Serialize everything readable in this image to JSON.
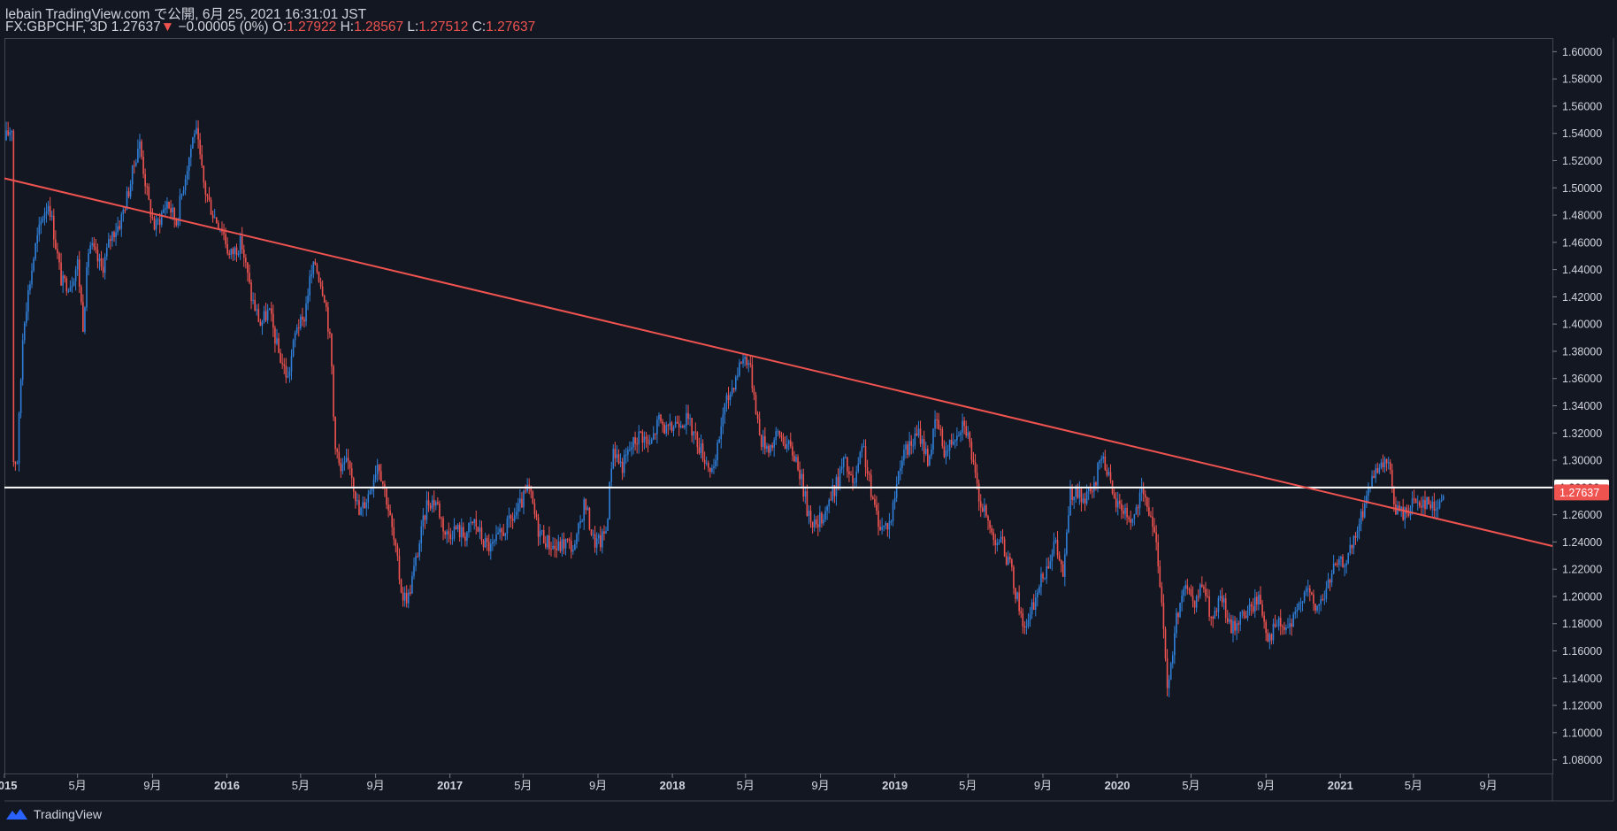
{
  "header": {
    "publisher_line": "lebain TradingView.com で公開, 6月 25, 2021 16:31:01 JST",
    "symbol": "FX:GBPCHF, 3D",
    "last": "1.27637",
    "change_arrow": "▼",
    "change": "−0.00005 (0%)",
    "o_label": "O:",
    "o_value": "1.27922",
    "h_label": "H:",
    "h_value": "1.28567",
    "l_label": "L:",
    "l_value": "1.27512",
    "c_label": "C:",
    "c_value": "1.27637"
  },
  "footer": {
    "brand": "TradingView"
  },
  "colors": {
    "background": "#131722",
    "up": "#2f7fd8",
    "down": "#ef5350",
    "trendline": "#ef5350",
    "hline": "#ffffff",
    "text": "#d1d4dc",
    "grid": "#2a2e39"
  },
  "chart_data": {
    "type": "candlestick",
    "symbol": "FX:GBPCHF",
    "timeframe": "3D",
    "ylim": [
      1.07,
      1.61
    ],
    "y_ticks": [
      "1.08000",
      "1.10000",
      "1.12000",
      "1.14000",
      "1.16000",
      "1.18000",
      "1.20000",
      "1.22000",
      "1.24000",
      "1.26000",
      "1.28000",
      "1.30000",
      "1.32000",
      "1.34000",
      "1.36000",
      "1.38000",
      "1.40000",
      "1.42000",
      "1.44000",
      "1.46000",
      "1.48000",
      "1.50000",
      "1.52000",
      "1.54000",
      "1.56000",
      "1.58000",
      "1.60000"
    ],
    "x_ticks": [
      {
        "date": "2015-01-01",
        "label": "2015",
        "major": true
      },
      {
        "date": "2015-05-01",
        "label": "5月"
      },
      {
        "date": "2015-09-01",
        "label": "9月"
      },
      {
        "date": "2016-01-01",
        "label": "2016",
        "major": true
      },
      {
        "date": "2016-05-01",
        "label": "5月"
      },
      {
        "date": "2016-09-01",
        "label": "9月"
      },
      {
        "date": "2017-01-01",
        "label": "2017",
        "major": true
      },
      {
        "date": "2017-05-01",
        "label": "5月"
      },
      {
        "date": "2017-09-01",
        "label": "9月"
      },
      {
        "date": "2018-01-01",
        "label": "2018",
        "major": true
      },
      {
        "date": "2018-05-01",
        "label": "5月"
      },
      {
        "date": "2018-09-01",
        "label": "9月"
      },
      {
        "date": "2019-01-01",
        "label": "2019",
        "major": true
      },
      {
        "date": "2019-05-01",
        "label": "5月"
      },
      {
        "date": "2019-09-01",
        "label": "9月"
      },
      {
        "date": "2020-01-01",
        "label": "2020",
        "major": true
      },
      {
        "date": "2020-05-01",
        "label": "5月"
      },
      {
        "date": "2020-09-01",
        "label": "9月"
      },
      {
        "date": "2021-01-01",
        "label": "2021",
        "major": true
      },
      {
        "date": "2021-05-01",
        "label": "5月"
      },
      {
        "date": "2021-09-01",
        "label": "9月"
      }
    ],
    "x_range": [
      "2015-01-01",
      "2021-12-15"
    ],
    "price_path": [
      [
        "2015-01-01",
        1.535
      ],
      [
        "2015-01-13",
        1.545
      ],
      [
        "2015-01-15",
        1.3
      ],
      [
        "2015-01-22",
        1.3
      ],
      [
        "2015-02-01",
        1.4
      ],
      [
        "2015-02-20",
        1.455
      ],
      [
        "2015-03-05",
        1.48
      ],
      [
        "2015-03-15",
        1.49
      ],
      [
        "2015-04-05",
        1.43
      ],
      [
        "2015-04-20",
        1.43
      ],
      [
        "2015-05-01",
        1.445
      ],
      [
        "2015-05-10",
        1.4
      ],
      [
        "2015-05-20",
        1.46
      ],
      [
        "2015-06-10",
        1.44
      ],
      [
        "2015-06-25",
        1.465
      ],
      [
        "2015-07-10",
        1.475
      ],
      [
        "2015-07-25",
        1.5
      ],
      [
        "2015-08-10",
        1.535
      ],
      [
        "2015-08-25",
        1.49
      ],
      [
        "2015-09-05",
        1.47
      ],
      [
        "2015-09-25",
        1.49
      ],
      [
        "2015-10-10",
        1.475
      ],
      [
        "2015-10-25",
        1.51
      ],
      [
        "2015-11-10",
        1.545
      ],
      [
        "2015-11-25",
        1.5
      ],
      [
        "2015-12-10",
        1.48
      ],
      [
        "2015-12-25",
        1.47
      ],
      [
        "2016-01-05",
        1.45
      ],
      [
        "2016-01-25",
        1.46
      ],
      [
        "2016-02-10",
        1.42
      ],
      [
        "2016-02-25",
        1.4
      ],
      [
        "2016-03-10",
        1.41
      ],
      [
        "2016-03-25",
        1.38
      ],
      [
        "2016-04-10",
        1.36
      ],
      [
        "2016-04-25",
        1.4
      ],
      [
        "2016-05-05",
        1.4
      ],
      [
        "2016-05-15",
        1.43
      ],
      [
        "2016-05-25",
        1.445
      ],
      [
        "2016-06-10",
        1.42
      ],
      [
        "2016-06-20",
        1.38
      ],
      [
        "2016-06-25",
        1.32
      ],
      [
        "2016-07-05",
        1.29
      ],
      [
        "2016-07-20",
        1.3
      ],
      [
        "2016-08-05",
        1.26
      ],
      [
        "2016-08-20",
        1.275
      ],
      [
        "2016-09-05",
        1.3
      ],
      [
        "2016-09-20",
        1.27
      ],
      [
        "2016-10-05",
        1.23
      ],
      [
        "2016-10-15",
        1.2
      ],
      [
        "2016-10-25",
        1.2
      ],
      [
        "2016-11-10",
        1.235
      ],
      [
        "2016-11-25",
        1.27
      ],
      [
        "2016-12-10",
        1.27
      ],
      [
        "2016-12-25",
        1.245
      ],
      [
        "2017-01-10",
        1.25
      ],
      [
        "2017-01-25",
        1.245
      ],
      [
        "2017-02-10",
        1.255
      ],
      [
        "2017-02-25",
        1.24
      ],
      [
        "2017-03-10",
        1.235
      ],
      [
        "2017-03-25",
        1.245
      ],
      [
        "2017-04-10",
        1.255
      ],
      [
        "2017-04-25",
        1.265
      ],
      [
        "2017-05-10",
        1.28
      ],
      [
        "2017-05-25",
        1.25
      ],
      [
        "2017-06-10",
        1.24
      ],
      [
        "2017-06-25",
        1.235
      ],
      [
        "2017-07-10",
        1.24
      ],
      [
        "2017-07-25",
        1.235
      ],
      [
        "2017-08-10",
        1.27
      ],
      [
        "2017-08-25",
        1.24
      ],
      [
        "2017-09-05",
        1.24
      ],
      [
        "2017-09-15",
        1.25
      ],
      [
        "2017-09-25",
        1.31
      ],
      [
        "2017-10-10",
        1.295
      ],
      [
        "2017-10-25",
        1.31
      ],
      [
        "2017-11-10",
        1.32
      ],
      [
        "2017-11-25",
        1.31
      ],
      [
        "2017-12-10",
        1.33
      ],
      [
        "2017-12-25",
        1.32
      ],
      [
        "2018-01-10",
        1.33
      ],
      [
        "2018-01-25",
        1.33
      ],
      [
        "2018-02-10",
        1.315
      ],
      [
        "2018-02-25",
        1.3
      ],
      [
        "2018-03-10",
        1.29
      ],
      [
        "2018-03-25",
        1.335
      ],
      [
        "2018-04-10",
        1.355
      ],
      [
        "2018-04-25",
        1.375
      ],
      [
        "2018-05-05",
        1.375
      ],
      [
        "2018-05-15",
        1.35
      ],
      [
        "2018-05-25",
        1.315
      ],
      [
        "2018-06-10",
        1.31
      ],
      [
        "2018-06-25",
        1.32
      ],
      [
        "2018-07-10",
        1.31
      ],
      [
        "2018-07-25",
        1.3
      ],
      [
        "2018-08-10",
        1.265
      ],
      [
        "2018-08-25",
        1.25
      ],
      [
        "2018-09-10",
        1.265
      ],
      [
        "2018-09-25",
        1.28
      ],
      [
        "2018-10-10",
        1.3
      ],
      [
        "2018-10-25",
        1.28
      ],
      [
        "2018-11-10",
        1.31
      ],
      [
        "2018-11-25",
        1.27
      ],
      [
        "2018-12-10",
        1.25
      ],
      [
        "2018-12-25",
        1.255
      ],
      [
        "2019-01-10",
        1.3
      ],
      [
        "2019-01-25",
        1.31
      ],
      [
        "2019-02-10",
        1.32
      ],
      [
        "2019-02-25",
        1.3
      ],
      [
        "2019-03-10",
        1.33
      ],
      [
        "2019-03-25",
        1.305
      ],
      [
        "2019-04-10",
        1.32
      ],
      [
        "2019-04-25",
        1.33
      ],
      [
        "2019-05-05",
        1.31
      ],
      [
        "2019-05-15",
        1.28
      ],
      [
        "2019-05-25",
        1.265
      ],
      [
        "2019-06-10",
        1.245
      ],
      [
        "2019-06-25",
        1.24
      ],
      [
        "2019-07-10",
        1.22
      ],
      [
        "2019-07-25",
        1.19
      ],
      [
        "2019-08-05",
        1.175
      ],
      [
        "2019-08-20",
        1.2
      ],
      [
        "2019-09-05",
        1.22
      ],
      [
        "2019-09-20",
        1.24
      ],
      [
        "2019-10-05",
        1.215
      ],
      [
        "2019-10-15",
        1.275
      ],
      [
        "2019-10-25",
        1.275
      ],
      [
        "2019-11-10",
        1.27
      ],
      [
        "2019-11-25",
        1.28
      ],
      [
        "2019-12-05",
        1.305
      ],
      [
        "2019-12-15",
        1.295
      ],
      [
        "2019-12-25",
        1.27
      ],
      [
        "2020-01-10",
        1.265
      ],
      [
        "2020-01-25",
        1.255
      ],
      [
        "2020-02-10",
        1.275
      ],
      [
        "2020-02-25",
        1.26
      ],
      [
        "2020-03-10",
        1.22
      ],
      [
        "2020-03-20",
        1.15
      ],
      [
        "2020-03-25",
        1.13
      ],
      [
        "2020-04-05",
        1.18
      ],
      [
        "2020-04-20",
        1.21
      ],
      [
        "2020-05-05",
        1.19
      ],
      [
        "2020-05-20",
        1.21
      ],
      [
        "2020-06-05",
        1.18
      ],
      [
        "2020-06-20",
        1.2
      ],
      [
        "2020-07-05",
        1.175
      ],
      [
        "2020-07-20",
        1.185
      ],
      [
        "2020-08-05",
        1.19
      ],
      [
        "2020-08-20",
        1.2
      ],
      [
        "2020-09-05",
        1.17
      ],
      [
        "2020-09-20",
        1.18
      ],
      [
        "2020-10-05",
        1.175
      ],
      [
        "2020-10-20",
        1.185
      ],
      [
        "2020-11-05",
        1.21
      ],
      [
        "2020-11-20",
        1.19
      ],
      [
        "2020-12-05",
        1.2
      ],
      [
        "2020-12-20",
        1.22
      ],
      [
        "2021-01-05",
        1.225
      ],
      [
        "2021-01-20",
        1.235
      ],
      [
        "2021-02-05",
        1.26
      ],
      [
        "2021-02-20",
        1.285
      ],
      [
        "2021-03-05",
        1.29
      ],
      [
        "2021-03-20",
        1.3
      ],
      [
        "2021-04-01",
        1.265
      ],
      [
        "2021-04-15",
        1.26
      ],
      [
        "2021-05-01",
        1.27
      ],
      [
        "2021-05-20",
        1.27
      ],
      [
        "2021-06-05",
        1.265
      ],
      [
        "2021-06-20",
        1.2764
      ]
    ],
    "horizontal_line": {
      "price": 1.28,
      "label": "1.28000"
    },
    "trendline": {
      "start": [
        "2015-01-01",
        1.507
      ],
      "end": [
        "2021-12-15",
        1.237
      ]
    },
    "last_price": {
      "price": 1.27637,
      "label": "1.27637"
    }
  }
}
